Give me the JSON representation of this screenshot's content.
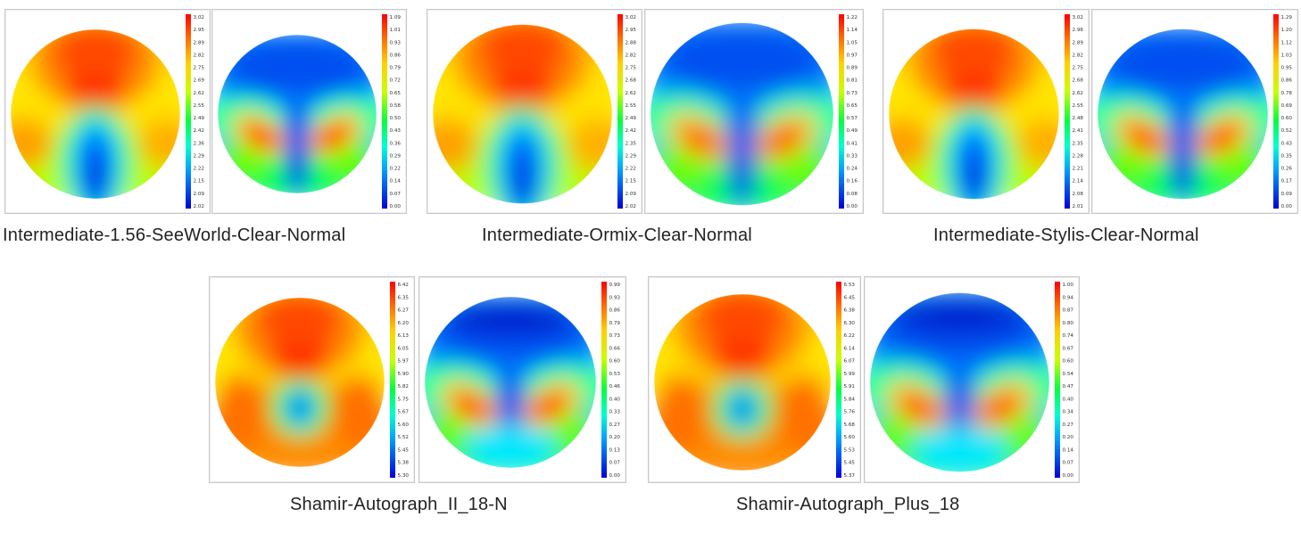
{
  "colors": {
    "high": "#ff2a00",
    "mid": "#00e060",
    "low": "#0020e0",
    "panel_border": "#c8c8c8"
  },
  "groups": [
    {
      "caption": "Intermediate-1.56-SeeWorld-Clear-Normal",
      "maps": [
        {
          "label": "power-map",
          "colorbar_ticks": [
            "3.02",
            "2.95",
            "2.89",
            "2.82",
            "2.75",
            "2.69",
            "2.62",
            "2.55",
            "2.49",
            "2.42",
            "2.36",
            "2.29",
            "2.22",
            "2.15",
            "2.09",
            "2.02"
          ]
        },
        {
          "label": "astigmatism-map",
          "colorbar_ticks": [
            "1.09",
            "1.01",
            "0.93",
            "0.86",
            "0.79",
            "0.72",
            "0.65",
            "0.58",
            "0.50",
            "0.43",
            "0.36",
            "0.29",
            "0.22",
            "0.14",
            "0.07",
            "0.00"
          ]
        }
      ]
    },
    {
      "caption": "Intermediate-Ormix-Clear-Normal",
      "maps": [
        {
          "label": "power-map",
          "colorbar_ticks": [
            "3.02",
            "2.95",
            "2.88",
            "2.82",
            "2.75",
            "2.68",
            "2.62",
            "2.55",
            "2.49",
            "2.42",
            "2.35",
            "2.29",
            "2.22",
            "2.15",
            "2.09",
            "2.02"
          ]
        },
        {
          "label": "astigmatism-map",
          "colorbar_ticks": [
            "1.22",
            "1.14",
            "1.05",
            "0.97",
            "0.89",
            "0.81",
            "0.73",
            "0.65",
            "0.57",
            "0.49",
            "0.41",
            "0.33",
            "0.24",
            "0.16",
            "0.08",
            "0.00"
          ]
        }
      ]
    },
    {
      "caption": "Intermediate-Stylis-Clear-Normal",
      "maps": [
        {
          "label": "power-map",
          "colorbar_ticks": [
            "3.02",
            "2.96",
            "2.89",
            "2.82",
            "2.75",
            "2.68",
            "2.62",
            "2.55",
            "2.48",
            "2.41",
            "2.35",
            "2.28",
            "2.21",
            "2.14",
            "2.08",
            "2.01"
          ]
        },
        {
          "label": "astigmatism-map",
          "colorbar_ticks": [
            "1.29",
            "1.20",
            "1.12",
            "1.03",
            "0.95",
            "0.86",
            "0.78",
            "0.69",
            "0.60",
            "0.52",
            "0.43",
            "0.35",
            "0.26",
            "0.17",
            "0.09",
            "0.00"
          ]
        }
      ]
    },
    {
      "caption": "Shamir-Autograph_II_18-N",
      "maps": [
        {
          "label": "power-map",
          "colorbar_ticks": [
            "6.42",
            "6.35",
            "6.27",
            "6.20",
            "6.13",
            "6.05",
            "5.97",
            "5.90",
            "5.82",
            "5.75",
            "5.67",
            "5.60",
            "5.52",
            "5.45",
            "5.38",
            "5.30"
          ]
        },
        {
          "label": "astigmatism-map",
          "colorbar_ticks": [
            "0.99",
            "0.93",
            "0.86",
            "0.79",
            "0.73",
            "0.66",
            "0.60",
            "0.53",
            "0.46",
            "0.40",
            "0.33",
            "0.27",
            "0.20",
            "0.13",
            "0.07",
            "0.00"
          ]
        }
      ]
    },
    {
      "caption": "Shamir-Autograph_Plus_18",
      "maps": [
        {
          "label": "power-map",
          "colorbar_ticks": [
            "6.53",
            "6.45",
            "6.38",
            "6.30",
            "6.22",
            "6.14",
            "6.07",
            "5.99",
            "5.91",
            "5.84",
            "5.76",
            "5.68",
            "5.60",
            "5.53",
            "5.45",
            "5.37"
          ]
        },
        {
          "label": "astigmatism-map",
          "colorbar_ticks": [
            "1.00",
            "0.94",
            "0.87",
            "0.80",
            "0.74",
            "0.67",
            "0.60",
            "0.54",
            "0.47",
            "0.40",
            "0.34",
            "0.27",
            "0.20",
            "0.14",
            "0.07",
            "0.00"
          ]
        }
      ]
    }
  ]
}
